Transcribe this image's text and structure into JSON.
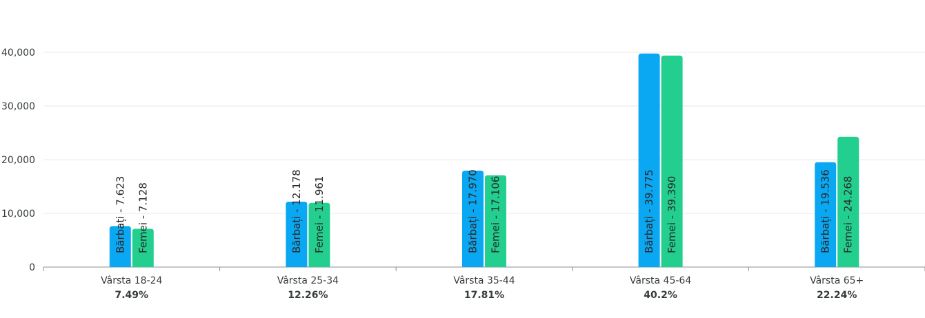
{
  "chart_data": {
    "type": "bar",
    "orientation": "vertical",
    "categories": [
      "Vârsta 18-24",
      "Vârsta 25-34",
      "Vârsta 35-44",
      "Vârsta 45-64",
      "Vârsta 65+"
    ],
    "category_percentages": [
      "7.49%",
      "12.26%",
      "17.81%",
      "40.2%",
      "22.24%"
    ],
    "series": [
      {
        "name": "Bărbați",
        "color": "#0aa7f2",
        "values": [
          7623,
          12178,
          17970,
          39775,
          19536
        ],
        "labels": [
          "Bărbați - 7.623",
          "Bărbați - 12.178",
          "Bărbați - 17.970",
          "Bărbați - 39.775",
          "Bărbați - 19.536"
        ]
      },
      {
        "name": "Femei",
        "color": "#22cf8f",
        "values": [
          7128,
          11961,
          17106,
          39390,
          24268
        ],
        "labels": [
          "Femei - 7.128",
          "Femei - 11.961",
          "Femei - 17.106",
          "Femei - 39.390",
          "Femei - 24.268"
        ]
      }
    ],
    "y_ticks": [
      0,
      10000,
      20000,
      30000,
      40000
    ],
    "y_tick_labels": [
      "0",
      "10,000",
      "20,000",
      "30,000",
      "40,000"
    ],
    "ylim": [
      0,
      40000
    ],
    "grid": true,
    "legend": "none"
  }
}
